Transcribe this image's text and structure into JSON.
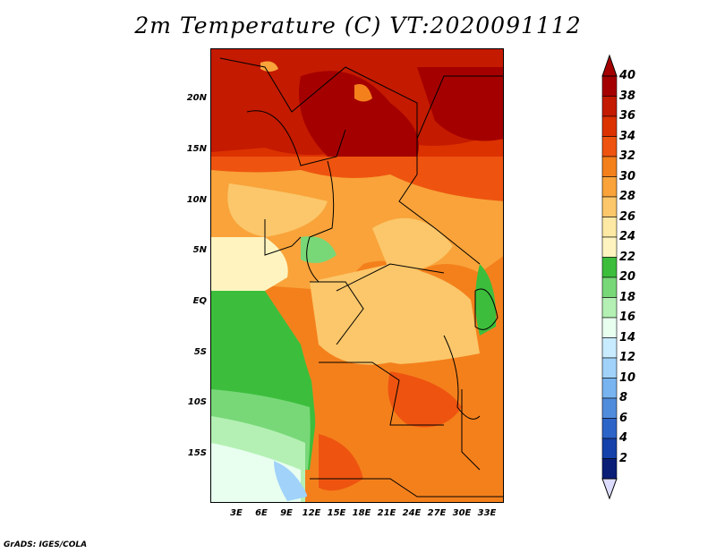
{
  "title": "2m Temperature (C) VT:2020091112",
  "credit": "GrADS: IGES/COLA",
  "map": {
    "region": "Central Africa",
    "latitude_labels": [
      "20N",
      "15N",
      "10N",
      "5N",
      "EQ",
      "5S",
      "10S",
      "15S"
    ],
    "longitude_labels": [
      "3E",
      "6E",
      "9E",
      "12E",
      "15E",
      "18E",
      "21E",
      "24E",
      "27E",
      "30E",
      "33E"
    ]
  },
  "colorbar": {
    "labels": [
      "40",
      "38",
      "36",
      "34",
      "32",
      "30",
      "28",
      "26",
      "24",
      "22",
      "20",
      "18",
      "16",
      "14",
      "12",
      "10",
      "8",
      "6",
      "4",
      "2"
    ],
    "colors": [
      "#a50000",
      "#c41a00",
      "#dc3200",
      "#ee5410",
      "#f4801c",
      "#f9a33a",
      "#fbc76a",
      "#fde9a4",
      "#fff4c0",
      "#3cbe3c",
      "#78d878",
      "#b4f0b4",
      "#e8fff0",
      "#c8ebff",
      "#a0d2fa",
      "#78b4f0",
      "#508cdc",
      "#2d64c8",
      "#1441aa",
      "#0a1e78"
    ],
    "top_arrow_color": "#a50000",
    "bottom_arrow_color": "#dcdcff"
  }
}
